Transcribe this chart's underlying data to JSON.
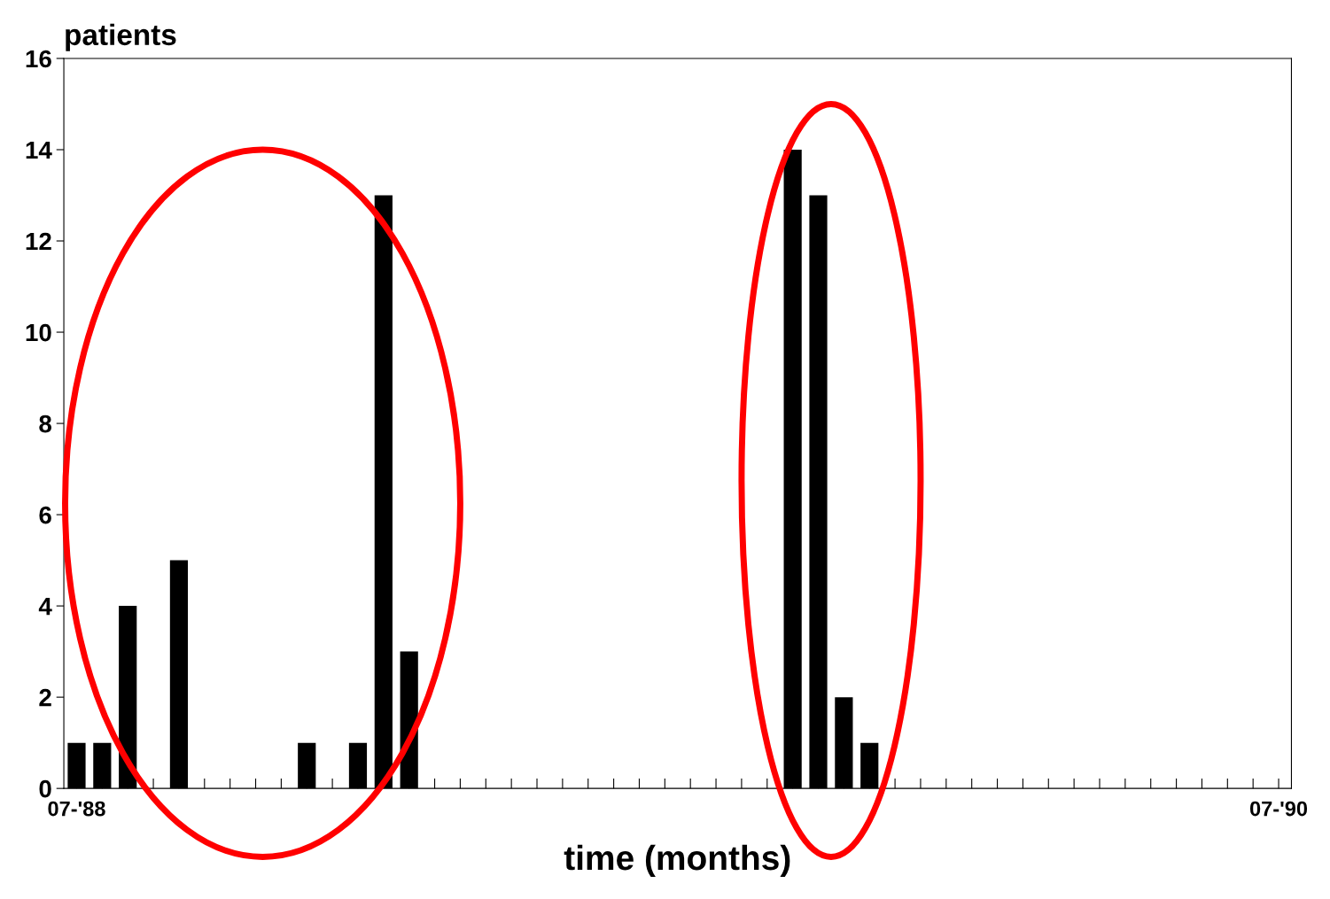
{
  "chart_data": {
    "type": "bar",
    "ylabel": "patients",
    "xlabel": "time (months)",
    "categories": [
      "07-'88",
      null,
      null,
      null,
      null,
      null,
      null,
      null,
      null,
      null,
      null,
      null,
      null,
      null,
      null,
      null,
      null,
      null,
      null,
      null,
      null,
      null,
      null,
      null,
      null,
      null,
      null,
      null,
      null,
      null,
      null,
      null,
      null,
      null,
      null,
      null,
      null,
      null,
      null,
      null,
      null,
      null,
      null,
      null,
      null,
      null,
      null,
      "07-'90"
    ],
    "values": [
      1,
      1,
      4,
      0,
      5,
      0,
      0,
      0,
      0,
      1,
      0,
      1,
      13,
      3,
      0,
      0,
      0,
      0,
      0,
      0,
      0,
      0,
      0,
      0,
      0,
      0,
      0,
      0,
      14,
      13,
      2,
      1,
      0,
      0,
      0,
      0,
      0,
      0,
      0,
      0,
      0,
      0,
      0,
      0,
      0,
      0,
      0,
      0
    ],
    "color": "#000000",
    "ylim": [
      0,
      16
    ],
    "yticks": [
      0,
      2,
      4,
      6,
      8,
      10,
      12,
      14,
      16
    ],
    "grid": false,
    "legend": false
  }
}
